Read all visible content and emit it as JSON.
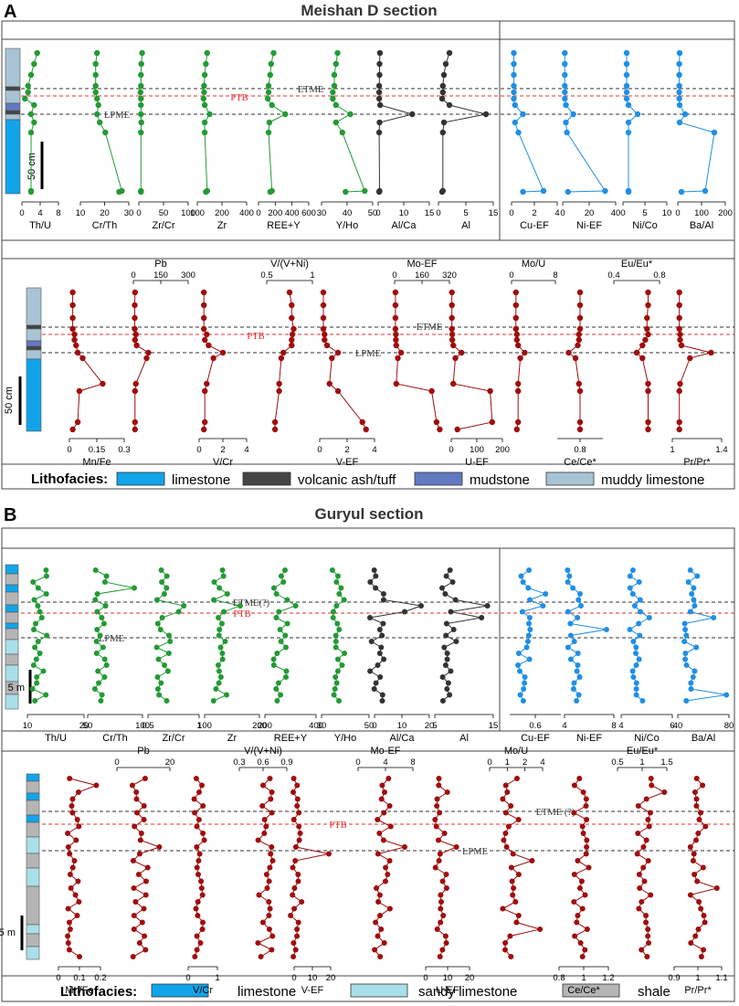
{
  "panels": [
    {
      "letter": "A",
      "title": "Meishan D section"
    },
    {
      "letter": "B",
      "title": "Guryul section"
    }
  ],
  "colors": {
    "detrital": "#239a35",
    "volcanic": "#333333",
    "trace": "#1f8fe5",
    "redox": "#a00d0d",
    "ptb_line": "#e03030",
    "event_line": "#333333",
    "limestone": "#12a4ea",
    "volcanic_ash": "#444444",
    "mudstone": "#6179c0",
    "muddy_limestone": "#a8c4d4",
    "sandy_limestone": "#a9dfe9",
    "shale": "#b5b5b5"
  },
  "legendA": {
    "title": "Lithofacies:",
    "items": [
      {
        "label": "limestone",
        "color": "#12a4ea"
      },
      {
        "label": "volcanic ash/tuff",
        "color": "#444444"
      },
      {
        "label": "mudstone",
        "color": "#6179c0"
      },
      {
        "label": "muddy limestone",
        "color": "#a8c4d4"
      }
    ]
  },
  "legendB": {
    "title": "Lithofacies:",
    "items": [
      {
        "label": "limestone",
        "color": "#12a4ea"
      },
      {
        "label": "sandy limestone",
        "color": "#a9dfe9"
      },
      {
        "label": "shale",
        "color": "#b5b5b5"
      }
    ]
  },
  "scaleA": "50 cm",
  "scaleB": "5 m",
  "events": {
    "A": {
      "etme": "ETME",
      "ptb": "PTB",
      "lpme": "LPME"
    },
    "B": {
      "etme": "ETME(?)",
      "etme2": "ETME (?)",
      "ptb": "PTB",
      "lpme": "LPME"
    }
  },
  "chart_data": [
    {
      "type": "line",
      "panel": "A1",
      "series": [
        {
          "name": "Th/U",
          "ticks": [
            "0",
            "4",
            "8"
          ],
          "xlim": [
            0,
            12
          ],
          "values": [
            5,
            4,
            3,
            2,
            2,
            1,
            4,
            3,
            4,
            3,
            3,
            3
          ]
        },
        {
          "name": "Cr/Th",
          "ticks": [
            "10",
            "20",
            "30"
          ],
          "xlim": [
            0,
            35
          ],
          "values": [
            12,
            11,
            11,
            11,
            11,
            12,
            13,
            12,
            14,
            18,
            30,
            28
          ]
        },
        {
          "name": "Zr/Cr",
          "ticks": [
            "0",
            "50",
            "100"
          ],
          "xlim": [
            0,
            120
          ],
          "values": [
            8,
            6,
            5,
            5,
            4,
            5,
            5,
            5,
            6,
            5,
            5,
            5
          ]
        },
        {
          "name": "Zr",
          "ticks": [
            "100",
            "200",
            "400"
          ],
          "xlim": [
            0,
            400
          ],
          "values": [
            80,
            70,
            60,
            55,
            55,
            50,
            60,
            100,
            60,
            60,
            80,
            70
          ]
        },
        {
          "name": "REE+Y",
          "ticks": [
            "0",
            "200",
            "400",
            "600"
          ],
          "xlim": [
            0,
            600
          ],
          "values": [
            180,
            150,
            140,
            120,
            120,
            110,
            160,
            320,
            130,
            120,
            160,
            140
          ]
        },
        {
          "name": "Y/Ho",
          "ticks": [
            "30",
            "40",
            "50"
          ],
          "xlim": [
            20,
            52
          ],
          "values": [
            30,
            29,
            28,
            28,
            27,
            27,
            29,
            38,
            29,
            33,
            47,
            35
          ]
        }
      ]
    },
    {
      "type": "line",
      "panel": "A1-volcanic",
      "series": [
        {
          "name": "Al/Ca",
          "ticks": [
            "0",
            "10",
            "15"
          ],
          "xlim": [
            0,
            15
          ],
          "values": [
            0.5,
            0.4,
            0.4,
            0.3,
            0.3,
            0.3,
            0.6,
            10,
            0.4,
            0.3,
            0.4,
            0.3
          ]
        },
        {
          "name": "Al",
          "ticks": [
            "0",
            "5",
            "15"
          ],
          "xlim": [
            0,
            15
          ],
          "values": [
            3,
            2,
            1.5,
            1.2,
            1.2,
            1.0,
            3,
            13,
            1.5,
            1.2,
            1.2,
            1.0
          ]
        }
      ]
    },
    {
      "type": "line",
      "panel": "A1-trace",
      "series": [
        {
          "name": "Cu-EF",
          "ticks": [
            "0",
            "2",
            "4"
          ],
          "xlim": [
            0,
            4
          ],
          "values": [
            0.2,
            0.2,
            0.2,
            0.2,
            0.2,
            0.2,
            0.3,
            1.0,
            0.3,
            0.6,
            2.8,
            1.0
          ]
        },
        {
          "name": "Ni-EF",
          "ticks": [
            "0",
            "20",
            "40"
          ],
          "xlim": [
            0,
            50
          ],
          "values": [
            2,
            2,
            2,
            2,
            2,
            2,
            3,
            10,
            3,
            4,
            40,
            5
          ]
        },
        {
          "name": "Ni/Co",
          "ticks": [
            "0",
            "5",
            "10"
          ],
          "xlim": [
            0,
            12
          ],
          "values": [
            1,
            1,
            1,
            1,
            1,
            1,
            1.5,
            4,
            1.5,
            1.5,
            1.5,
            1.5
          ]
        },
        {
          "name": "Ba/Al",
          "ticks": [
            "0",
            "100",
            "200"
          ],
          "xlim": [
            0,
            260
          ],
          "values": [
            10,
            8,
            8,
            8,
            8,
            8,
            10,
            40,
            10,
            200,
            150,
            20
          ]
        }
      ]
    },
    {
      "type": "line",
      "panel": "A2",
      "top_axes": [
        {
          "name": "Pb",
          "ticks": [
            "0",
            "150",
            "300"
          ]
        },
        {
          "name": "V/(V+Ni)",
          "ticks": [
            "0.5",
            "1"
          ]
        },
        {
          "name": "Mo-EF",
          "ticks": [
            "0",
            "160",
            "320"
          ]
        },
        {
          "name": "Mo/U",
          "ticks": [
            "0",
            "8"
          ]
        },
        {
          "name": "Eu/Eu*",
          "ticks": [
            "0.4",
            "0.8"
          ]
        }
      ],
      "series": [
        {
          "name": "Mn/Fe",
          "ticks": [
            "0",
            "0.15",
            "0.3"
          ],
          "xlim": [
            0,
            0.33
          ],
          "values": [
            0.02,
            0.02,
            0.02,
            0.02,
            0.03,
            0.03,
            0.04,
            0.05,
            0.08,
            0.2,
            0.06,
            0.05,
            0.02
          ]
        },
        {
          "name": "Pb",
          "ticks": [
            "0",
            "150",
            "300"
          ],
          "xlim": [
            0,
            330
          ],
          "values": [
            10,
            8,
            8,
            8,
            15,
            10,
            20,
            90,
            80,
            15,
            10,
            10,
            10
          ]
        },
        {
          "name": "V/Cr",
          "ticks": [
            "0",
            "2",
            "4"
          ],
          "xlim": [
            0,
            5
          ],
          "values": [
            0.5,
            0.5,
            0.5,
            0.5,
            0.8,
            0.6,
            1.0,
            2.5,
            1.5,
            0.8,
            0.6,
            0.6,
            0.5
          ]
        },
        {
          "name": "V/(V+Ni)",
          "ticks": [
            "0.5",
            "1"
          ],
          "xlim": [
            0,
            1.1
          ],
          "values": [
            0.55,
            0.6,
            0.6,
            0.65,
            0.62,
            0.6,
            0.6,
            0.4,
            0.35,
            0.3,
            0.3,
            0.2,
            0.2
          ]
        },
        {
          "name": "V-EF",
          "ticks": [
            "0",
            "2",
            "4"
          ],
          "xlim": [
            0,
            4.5
          ],
          "values": [
            0.3,
            0.3,
            0.3,
            0.3,
            0.4,
            0.4,
            0.6,
            1.5,
            1.0,
            0.8,
            1.5,
            3.5,
            3.8
          ]
        },
        {
          "name": "Mo-EF",
          "ticks": [
            "0",
            "160",
            "320"
          ],
          "xlim": [
            0,
            340
          ],
          "values": [
            5,
            5,
            5,
            5,
            8,
            8,
            10,
            40,
            20,
            10,
            230,
            260,
            280
          ]
        },
        {
          "name": "U-EF",
          "ticks": [
            "0",
            "100",
            "200"
          ],
          "xlim": [
            0,
            250
          ],
          "values": [
            3,
            3,
            3,
            3,
            5,
            5,
            10,
            50,
            20,
            10,
            190,
            200,
            30
          ]
        },
        {
          "name": "Mo/U",
          "ticks": [
            "0",
            "4",
            "8"
          ],
          "xlim": [
            0,
            10
          ],
          "values": [
            1,
            1,
            1,
            1,
            1.2,
            1.2,
            1.5,
            3,
            2,
            1.5,
            1.5,
            1.5,
            1.2
          ]
        },
        {
          "name": "Ce/Ce*",
          "ticks": [
            "0.8"
          ],
          "xlim": [
            0.6,
            1.0
          ],
          "values": [
            0.8,
            0.8,
            0.8,
            0.8,
            0.79,
            0.79,
            0.78,
            0.7,
            0.76,
            0.79,
            0.8,
            0.8,
            0.8
          ]
        },
        {
          "name": "Eu/Eu*",
          "ticks": [
            "0.4",
            "0.8"
          ],
          "xlim": [
            0.2,
            1.0
          ],
          "values": [
            0.8,
            0.8,
            0.78,
            0.78,
            0.8,
            0.75,
            0.7,
            0.6,
            0.7,
            0.8,
            0.8,
            0.8,
            0.8
          ]
        },
        {
          "name": "Pr/Pr*",
          "ticks": [
            "1",
            "1.4"
          ],
          "xlim": [
            0.95,
            1.65
          ],
          "values": [
            1.05,
            1.05,
            1.05,
            1.05,
            1.06,
            1.06,
            1.08,
            1.5,
            1.2,
            1.06,
            1.05,
            1.05,
            1.05
          ]
        }
      ]
    },
    {
      "type": "line",
      "panel": "B1",
      "series": [
        {
          "name": "Th/U",
          "ticks": [
            "10",
            "20"
          ],
          "xlim": [
            0,
            22
          ]
        },
        {
          "name": "Cr/Th",
          "ticks": [
            "50",
            "100"
          ],
          "xlim": [
            0,
            110
          ]
        },
        {
          "name": "Zr/Cr",
          "ticks": [
            "0.5",
            "1"
          ],
          "xlim": [
            0,
            1.1
          ]
        },
        {
          "name": "Zr",
          "ticks": [
            "100",
            "200"
          ],
          "xlim": [
            0,
            220
          ]
        },
        {
          "name": "REE+Y",
          "ticks": [
            "200",
            "400"
          ],
          "xlim": [
            0,
            420
          ]
        },
        {
          "name": "Y/Ho",
          "ticks": [
            "30",
            "50"
          ],
          "xlim": [
            10,
            52
          ]
        },
        {
          "name": "Al/Ca",
          "ticks": [
            "0",
            "10",
            "20"
          ],
          "xlim": [
            0,
            22
          ]
        },
        {
          "name": "Al",
          "ticks": [
            "5",
            "15"
          ],
          "xlim": [
            0,
            15
          ]
        },
        {
          "name": "Cu-EF",
          "ticks": [
            "0.6"
          ],
          "xlim": [
            0,
            1.1
          ]
        },
        {
          "name": "Ni-EF",
          "ticks": [
            "4",
            "8"
          ],
          "xlim": [
            0,
            9
          ]
        },
        {
          "name": "Ni/Co",
          "ticks": [
            "4",
            "6"
          ],
          "xlim": [
            0,
            6.5
          ]
        },
        {
          "name": "Ba/Al",
          "ticks": [
            "40",
            "80"
          ],
          "xlim": [
            0,
            82
          ]
        }
      ]
    },
    {
      "type": "line",
      "panel": "B2",
      "top_axes": [
        {
          "name": "Pb",
          "ticks": [
            "0",
            "20"
          ]
        },
        {
          "name": "V/(V+Ni)",
          "ticks": [
            "0.3",
            "0.6",
            "0.9"
          ]
        },
        {
          "name": "Mo-EF",
          "ticks": [
            "0",
            "4",
            "8"
          ]
        },
        {
          "name": "Mo/U",
          "ticks": [
            "0",
            "1",
            "2",
            "4"
          ]
        },
        {
          "name": "Eu/Eu*",
          "ticks": [
            "0.5",
            "1",
            "1.5"
          ]
        }
      ],
      "series": [
        {
          "name": "Mn/Fe",
          "ticks": [
            "0",
            "0.1",
            "0.2"
          ],
          "xlim": [
            0,
            0.22
          ]
        },
        {
          "name": "V/Cr",
          "ticks": [
            "0",
            "1"
          ],
          "xlim": [
            0,
            2
          ]
        },
        {
          "name": "V-EF",
          "ticks": [
            "0",
            "10",
            "20"
          ],
          "xlim": [
            0,
            22
          ]
        },
        {
          "name": "U-EF",
          "ticks": [
            "0",
            "10",
            "20"
          ],
          "xlim": [
            0,
            22
          ]
        },
        {
          "name": "Ce/Ce*",
          "ticks": [
            "0.8",
            "1",
            "1.2"
          ],
          "xlim": [
            0.8,
            1.25
          ]
        },
        {
          "name": "Pr/Pr*",
          "ticks": [
            "0.9",
            "1",
            "1.1"
          ],
          "xlim": [
            0.9,
            1.12
          ]
        }
      ]
    }
  ]
}
